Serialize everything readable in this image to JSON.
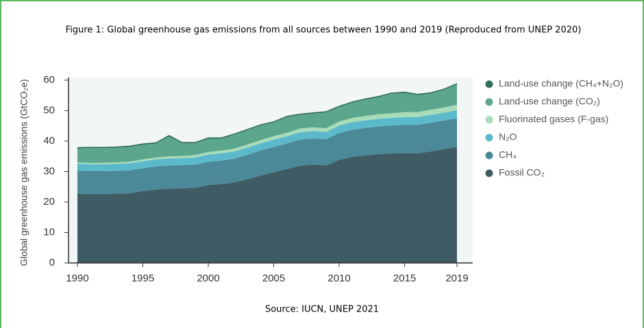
{
  "chart_data": {
    "type": "stacked_area",
    "title": "Figure 1: Global greenhouse gas emissions from all sources between 1990 and 2019 (Reproduced from UNEP 2020)",
    "source": "Source: IUCN, UNEP 2021",
    "y_label": "Global greenhouse gas emissions (GtCO₂e)",
    "x": [
      1990,
      1991,
      1992,
      1993,
      1994,
      1995,
      1996,
      1997,
      1998,
      1999,
      2000,
      2001,
      2002,
      2003,
      2004,
      2005,
      2006,
      2007,
      2008,
      2009,
      2010,
      2011,
      2012,
      2013,
      2014,
      2015,
      2016,
      2017,
      2018,
      2019
    ],
    "xlim": [
      1990,
      2019
    ],
    "xticks": [
      1990,
      1995,
      2000,
      2005,
      2010,
      2015,
      2019
    ],
    "ylim": [
      0,
      60
    ],
    "yticks": [
      0,
      10,
      20,
      30,
      40,
      50,
      60
    ],
    "grid": false,
    "legend": "right",
    "series": [
      {
        "name": "Fossil CO₂",
        "color": "#3f5b64",
        "values": [
          22.7,
          22.6,
          22.6,
          22.7,
          22.9,
          23.6,
          24.1,
          24.4,
          24.5,
          24.7,
          25.6,
          25.9,
          26.4,
          27.5,
          28.7,
          29.8,
          30.8,
          31.9,
          32.3,
          32.0,
          33.8,
          34.8,
          35.3,
          35.7,
          35.9,
          36.0,
          36.0,
          36.6,
          37.3,
          38.0
        ]
      },
      {
        "name": "CH₄",
        "color": "#4b8999",
        "values": [
          7.6,
          7.5,
          7.5,
          7.5,
          7.5,
          7.5,
          7.6,
          7.6,
          7.6,
          7.6,
          7.6,
          7.7,
          7.8,
          8.0,
          8.2,
          8.3,
          8.4,
          8.6,
          8.6,
          8.6,
          8.8,
          8.9,
          9.0,
          9.1,
          9.2,
          9.3,
          9.3,
          9.4,
          9.4,
          9.5
        ]
      },
      {
        "name": "N₂O",
        "color": "#5cb9cb",
        "values": [
          2.3,
          2.3,
          2.3,
          2.3,
          2.3,
          2.3,
          2.3,
          2.3,
          2.3,
          2.3,
          2.4,
          2.4,
          2.4,
          2.4,
          2.4,
          2.4,
          2.4,
          2.4,
          2.4,
          2.4,
          2.5,
          2.5,
          2.5,
          2.5,
          2.5,
          2.6,
          2.6,
          2.6,
          2.6,
          2.6
        ]
      },
      {
        "name": "Fluorinated gases (F-gas)",
        "color": "#a8dcb9",
        "values": [
          0.4,
          0.4,
          0.5,
          0.5,
          0.5,
          0.6,
          0.6,
          0.7,
          0.7,
          0.8,
          0.8,
          0.9,
          0.9,
          1.0,
          1.0,
          1.1,
          1.1,
          1.2,
          1.2,
          1.2,
          1.3,
          1.4,
          1.4,
          1.5,
          1.5,
          1.6,
          1.6,
          1.7,
          1.7,
          1.8
        ]
      },
      {
        "name": "Land-use change (CO₂)",
        "color": "#5ca68d",
        "values": [
          4.6,
          4.9,
          4.8,
          4.8,
          4.9,
          4.8,
          4.6,
          6.5,
          4.2,
          3.9,
          4.4,
          3.9,
          4.6,
          4.7,
          4.8,
          4.5,
          5.2,
          4.5,
          4.5,
          5.2,
          4.8,
          5.0,
          5.4,
          5.6,
          6.4,
          6.3,
          5.6,
          5.3,
          5.8,
          6.7
        ]
      },
      {
        "name": "Land-use change (CH₄+N₂O)",
        "color": "#2f6e5c",
        "values": [
          0.4,
          0.4,
          0.4,
          0.4,
          0.4,
          0.4,
          0.4,
          0.5,
          0.4,
          0.4,
          0.4,
          0.4,
          0.4,
          0.4,
          0.4,
          0.4,
          0.4,
          0.4,
          0.4,
          0.4,
          0.4,
          0.4,
          0.4,
          0.4,
          0.4,
          0.4,
          0.4,
          0.4,
          0.4,
          0.4
        ]
      }
    ]
  }
}
